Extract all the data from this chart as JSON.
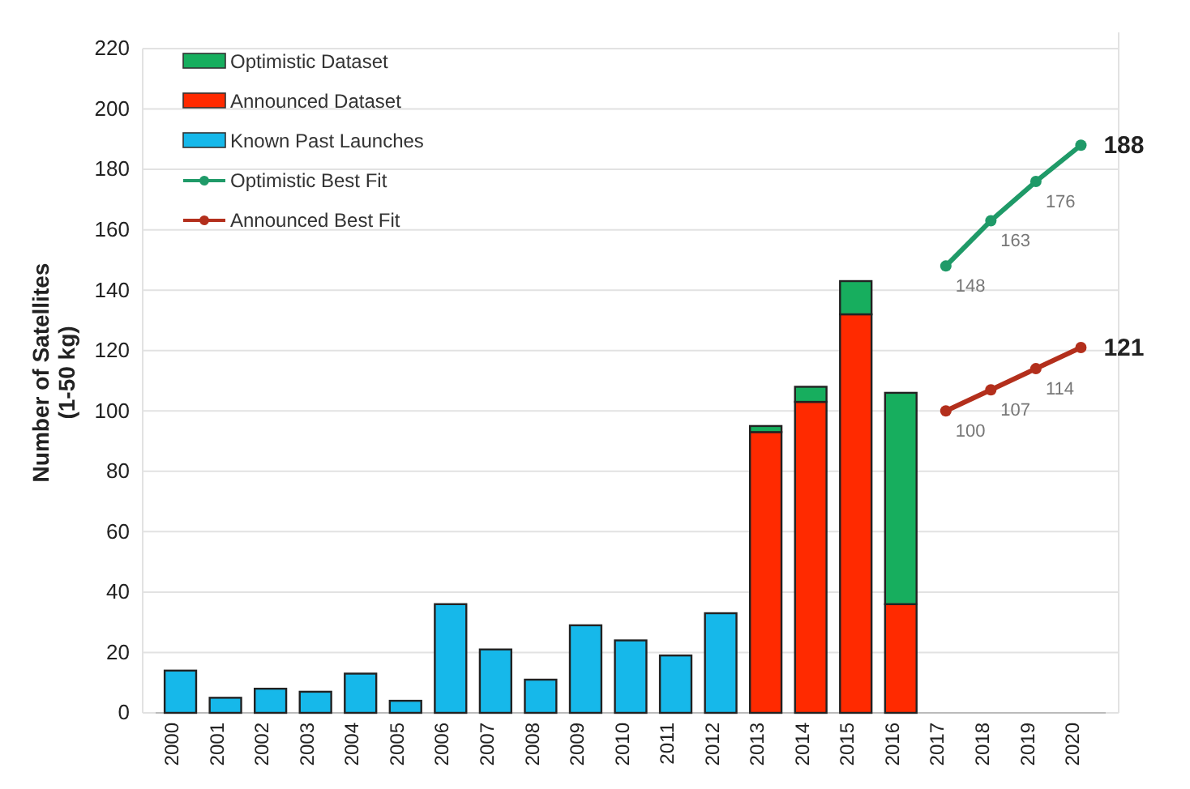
{
  "chart_data": {
    "type": "bar",
    "stacked": true,
    "ylabel": "Number of Satellites\n(1-50 kg)",
    "categories": [
      "2000",
      "2001",
      "2002",
      "2003",
      "2004",
      "2005",
      "2006",
      "2007",
      "2008",
      "2009",
      "2010",
      "2011",
      "2012",
      "2013",
      "2014",
      "2015",
      "2016",
      "2017",
      "2018",
      "2019",
      "2020"
    ],
    "ylim": [
      0,
      220
    ],
    "yticks": [
      0,
      20,
      40,
      60,
      80,
      100,
      120,
      140,
      160,
      180,
      200,
      220
    ],
    "grid": "y",
    "legend": "top left",
    "marker": "circle",
    "series": [
      {
        "name": "Known Past Launches",
        "color": "#16b8ea",
        "values": [
          14,
          5,
          8,
          7,
          13,
          4,
          36,
          21,
          11,
          29,
          24,
          19,
          33,
          null,
          null,
          null,
          null,
          null,
          null,
          null,
          null
        ]
      },
      {
        "name": "Announced Dataset",
        "color": "#ff2a00",
        "values": [
          null,
          null,
          null,
          null,
          null,
          null,
          null,
          null,
          null,
          null,
          null,
          null,
          null,
          93,
          103,
          132,
          36,
          null,
          null,
          null,
          null
        ]
      },
      {
        "name": "Optimistic Dataset",
        "color": "#17ae5e",
        "values": [
          null,
          null,
          null,
          null,
          null,
          null,
          null,
          null,
          null,
          null,
          null,
          null,
          null,
          2,
          5,
          11,
          70,
          null,
          null,
          null,
          null
        ]
      },
      {
        "name": "Optimistic Best Fit",
        "type": "line",
        "color": "#1f9a68",
        "values": [
          null,
          null,
          null,
          null,
          null,
          null,
          null,
          null,
          null,
          null,
          null,
          null,
          null,
          null,
          null,
          null,
          null,
          148,
          163,
          176,
          188
        ],
        "value_labels": [
          null,
          null,
          null,
          null,
          null,
          null,
          null,
          null,
          null,
          null,
          null,
          null,
          null,
          null,
          null,
          null,
          null,
          "148",
          "163",
          "176",
          "188"
        ]
      },
      {
        "name": "Announced Best Fit",
        "type": "line",
        "color": "#b32f1c",
        "values": [
          null,
          null,
          null,
          null,
          null,
          null,
          null,
          null,
          null,
          null,
          null,
          null,
          null,
          null,
          null,
          null,
          null,
          100,
          107,
          114,
          121
        ],
        "value_labels": [
          null,
          null,
          null,
          null,
          null,
          null,
          null,
          null,
          null,
          null,
          null,
          null,
          null,
          null,
          null,
          null,
          null,
          "100",
          "107",
          "114",
          "121"
        ]
      }
    ]
  }
}
